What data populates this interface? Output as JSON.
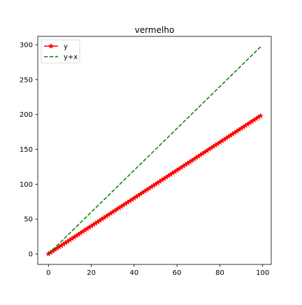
{
  "chart_data": {
    "type": "line",
    "title": "vermelho",
    "xlabel": "",
    "ylabel": "",
    "xlim": [
      -5,
      104
    ],
    "ylim": [
      -15,
      312
    ],
    "xticks": [
      0,
      20,
      40,
      60,
      80,
      100
    ],
    "yticks": [
      0,
      50,
      100,
      150,
      200,
      250,
      300
    ],
    "grid": false,
    "legend": "top-left",
    "x": {
      "start": 0,
      "stop": 99,
      "step": 1
    },
    "series": [
      {
        "name": "y",
        "formula": "2*x",
        "color": "#ff0000",
        "line_style": "solid",
        "marker": "star"
      },
      {
        "name": "y+x",
        "formula": "3*x",
        "color": "#008000",
        "line_style": "dashed",
        "marker": "none"
      }
    ]
  }
}
